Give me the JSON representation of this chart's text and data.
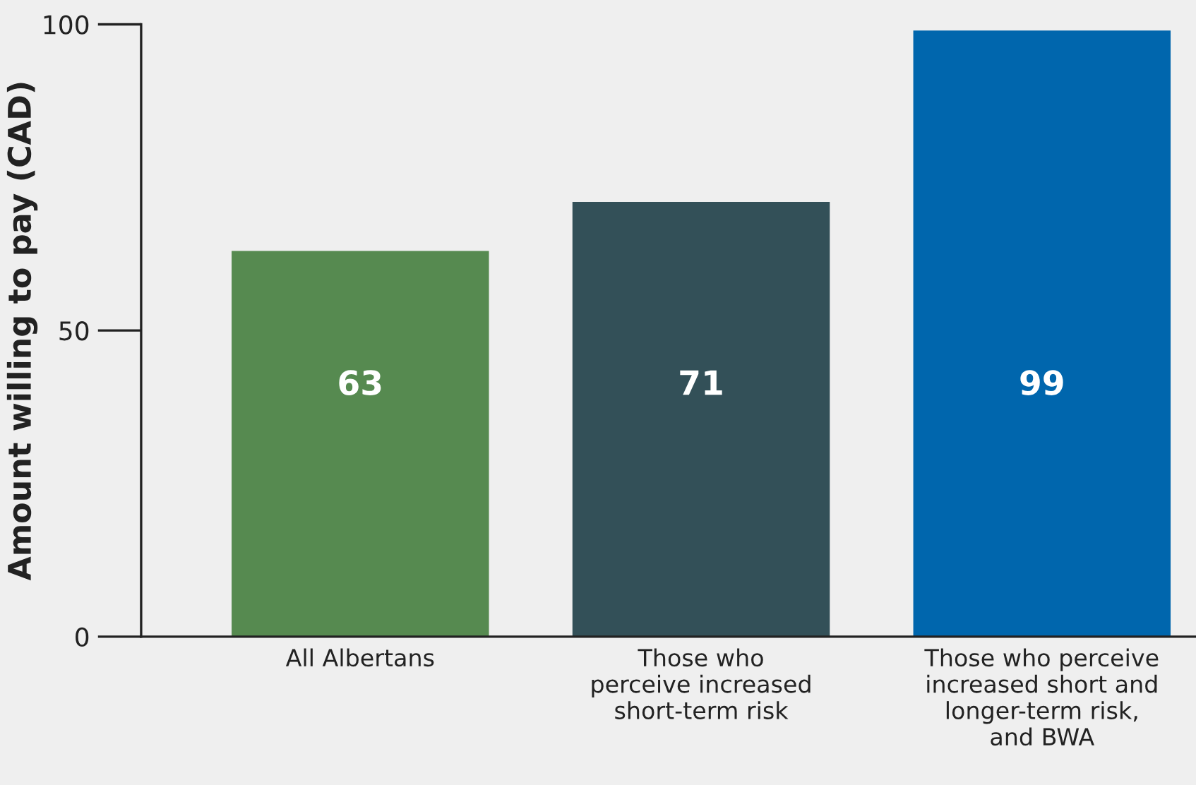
{
  "chart_data": {
    "type": "bar",
    "ylabel": "Amount willing to pay (CAD)",
    "categories": [
      "All Albertans",
      "Those who\nperceive increased\nshort-term risk",
      "Those who perceive\nincreased short and\nlonger-term risk,\nand BWA"
    ],
    "values": [
      63,
      71,
      99
    ],
    "colors": [
      "#568a50",
      "#335058",
      "#0066ad"
    ],
    "ylim": [
      0,
      100
    ],
    "yticks": [
      0,
      50,
      100
    ],
    "grid": false,
    "data_labels": true
  }
}
